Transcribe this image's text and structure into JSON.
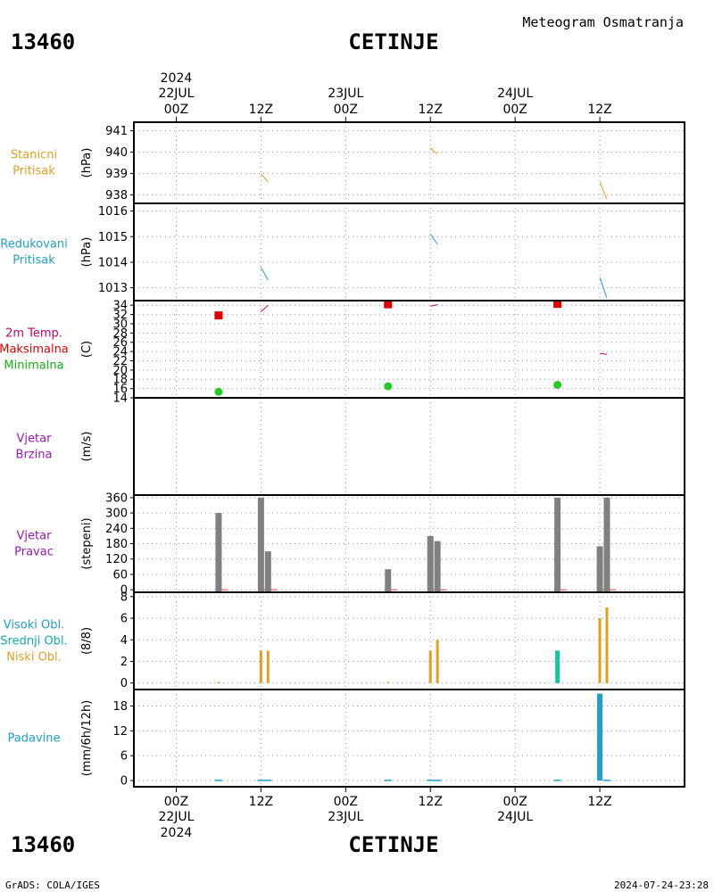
{
  "header": {
    "station_id": "13460",
    "station_name": "CETINJE",
    "product": "Meteogram Osmatranja"
  },
  "footer": {
    "station_id": "13460",
    "station_name": "CETINJE",
    "credit": "GrADS: COLA/IGES",
    "timestamp": "2024-07-24-23:28"
  },
  "time_axis": {
    "top_labels": [
      {
        "hour": 0,
        "l1": "2024",
        "l2": "22JUL",
        "l3": "00Z"
      },
      {
        "hour": 12,
        "l1": "",
        "l2": "",
        "l3": "12Z"
      },
      {
        "hour": 24,
        "l1": "",
        "l2": "23JUL",
        "l3": "00Z"
      },
      {
        "hour": 36,
        "l1": "",
        "l2": "",
        "l3": "12Z"
      },
      {
        "hour": 48,
        "l1": "",
        "l2": "24JUL",
        "l3": "00Z"
      },
      {
        "hour": 60,
        "l1": "",
        "l2": "",
        "l3": "12Z"
      }
    ],
    "bottom_labels": [
      {
        "hour": 0,
        "l1": "00Z",
        "l2": "22JUL",
        "l3": "2024"
      },
      {
        "hour": 12,
        "l1": "12Z",
        "l2": "",
        "l3": ""
      },
      {
        "hour": 24,
        "l1": "00Z",
        "l2": "23JUL",
        "l3": ""
      },
      {
        "hour": 36,
        "l1": "12Z",
        "l2": "",
        "l3": ""
      },
      {
        "hour": 48,
        "l1": "00Z",
        "l2": "24JUL",
        "l3": ""
      },
      {
        "hour": 60,
        "l1": "12Z",
        "l2": "",
        "l3": ""
      }
    ]
  },
  "panels": [
    {
      "key": "pressure",
      "ylabel": "(hPa)",
      "side_labels": [
        {
          "text": "Stanicni",
          "color": "#e0a020"
        },
        {
          "text": "Pritisak",
          "color": "#e0a020"
        }
      ]
    },
    {
      "key": "mslp",
      "ylabel": "(hPa)",
      "side_labels": [
        {
          "text": "Redukovani",
          "color": "#1ea0c8"
        },
        {
          "text": "Pritisak",
          "color": "#1ea0c8"
        }
      ]
    },
    {
      "key": "temp",
      "ylabel": "(C)",
      "side_labels": [
        {
          "text": "2m Temp.",
          "color": "#c0006a"
        },
        {
          "text": "Maksimalna",
          "color": "#e00000"
        },
        {
          "text": "Minimalna",
          "color": "#10b010"
        }
      ]
    },
    {
      "key": "wind_speed",
      "ylabel": "(m/s)",
      "side_labels": [
        {
          "text": "Vjetar",
          "color": "#9a18b0"
        },
        {
          "text": "Brzina",
          "color": "#9a18b0"
        }
      ]
    },
    {
      "key": "wind_dir",
      "ylabel": "(stepeni)",
      "side_labels": [
        {
          "text": "Vjetar",
          "color": "#9a18b0"
        },
        {
          "text": "Pravac",
          "color": "#9a18b0"
        }
      ]
    },
    {
      "key": "clouds",
      "ylabel": "(8/8)",
      "side_labels": [
        {
          "text": "Visoki Obl.",
          "color": "#1ea0c8"
        },
        {
          "text": "Srednji Obl.",
          "color": "#10b0a0"
        },
        {
          "text": "Niski Obl.",
          "color": "#e0a020"
        }
      ]
    },
    {
      "key": "precip",
      "ylabel": "(mm/6h/12h)",
      "side_labels": [
        {
          "text": "Padavine",
          "color": "#1ea0c8"
        }
      ]
    }
  ],
  "colors": {
    "pressure": "#e0a020",
    "mslp": "#1ea0c8",
    "temp": "#c0006a",
    "tmax": "#e00000",
    "tmin": "#22cc22",
    "wind_dir": "#808080",
    "wind_dir_base": "#e04040",
    "cloud_low": "#e0a020",
    "cloud_mid": "#10c8a0",
    "cloud_high": "#1ea0c8",
    "precip": "#1ea0c8"
  },
  "chart_data": [
    {
      "type": "line",
      "title": "Stanicni Pritisak",
      "ylabel": "(hPa)",
      "ylim": [
        937.6,
        941.4
      ],
      "yticks": [
        938,
        939,
        940,
        941
      ],
      "x_unit": "hours since 2024-07-22 00Z",
      "series": [
        {
          "name": "Stanicni Pritisak",
          "segments": [
            [
              [
                12,
                939.0
              ],
              [
                13,
                938.6
              ]
            ],
            [
              [
                36,
                940.2
              ],
              [
                37,
                939.9
              ]
            ],
            [
              [
                60,
                938.6
              ],
              [
                61,
                937.8
              ]
            ]
          ]
        }
      ]
    },
    {
      "type": "line",
      "title": "Redukovani Pritisak",
      "ylabel": "(hPa)",
      "ylim": [
        1012.5,
        1016.3
      ],
      "yticks": [
        1013,
        1014,
        1015,
        1016
      ],
      "x_unit": "hours since 2024-07-22 00Z",
      "series": [
        {
          "name": "Redukovani Pritisak",
          "segments": [
            [
              [
                12,
                1013.8
              ],
              [
                13,
                1013.3
              ]
            ],
            [
              [
                36,
                1015.1
              ],
              [
                37,
                1014.7
              ]
            ],
            [
              [
                60,
                1013.4
              ],
              [
                61,
                1012.6
              ]
            ]
          ]
        }
      ]
    },
    {
      "type": "line",
      "title": "2m Temp. / Maksimalna / Minimalna",
      "ylabel": "(C)",
      "ylim": [
        14,
        35
      ],
      "yticks": [
        14,
        16,
        18,
        20,
        22,
        24,
        26,
        28,
        30,
        32,
        34
      ],
      "x_unit": "hours since 2024-07-22 00Z",
      "series": [
        {
          "name": "2m Temp.",
          "segments": [
            [
              [
                12,
                32.6
              ],
              [
                13,
                34.0
              ]
            ],
            [
              [
                36,
                33.8
              ],
              [
                37,
                34.1
              ]
            ],
            [
              [
                60,
                23.6
              ],
              [
                61,
                23.4
              ]
            ]
          ]
        },
        {
          "name": "Maksimalna",
          "points": [
            [
              6,
              31.8
            ],
            [
              30,
              34.2
            ],
            [
              54,
              34.3
            ]
          ]
        },
        {
          "name": "Minimalna",
          "points": [
            [
              6,
              15.3
            ],
            [
              30,
              16.5
            ],
            [
              54,
              16.8
            ]
          ]
        }
      ]
    },
    {
      "type": "bar",
      "title": "Vjetar Brzina",
      "ylabel": "(m/s)",
      "x_unit": "hours since 2024-07-22 00Z",
      "series": [
        {
          "name": "Brzina",
          "points": []
        }
      ]
    },
    {
      "type": "bar",
      "title": "Vjetar Pravac",
      "ylabel": "(stepeni)",
      "ylim": [
        -10,
        370
      ],
      "yticks": [
        0,
        60,
        120,
        180,
        240,
        300,
        360
      ],
      "x_unit": "hours since 2024-07-22 00Z",
      "series": [
        {
          "name": "Pravac",
          "points": [
            [
              6,
              300
            ],
            [
              12,
              360
            ],
            [
              13,
              150
            ],
            [
              30,
              80
            ],
            [
              36,
              210
            ],
            [
              37,
              190
            ],
            [
              54,
              360
            ],
            [
              60,
              170
            ],
            [
              61,
              360
            ]
          ]
        }
      ]
    },
    {
      "type": "bar",
      "title": "Visoki / Srednji / Niski Obl.",
      "ylabel": "(8/8)",
      "ylim": [
        -0.6,
        8.4
      ],
      "yticks": [
        0,
        2,
        4,
        6,
        8
      ],
      "x_unit": "hours since 2024-07-22 00Z",
      "series": [
        {
          "name": "Niski Obl.",
          "points": [
            [
              6,
              0.1
            ],
            [
              12,
              3
            ],
            [
              13,
              3
            ],
            [
              30,
              0.1
            ],
            [
              36,
              3
            ],
            [
              37,
              4
            ],
            [
              54,
              2
            ],
            [
              60,
              6
            ],
            [
              61,
              7
            ]
          ]
        },
        {
          "name": "Srednji Obl.",
          "points": [
            [
              54,
              3
            ]
          ]
        },
        {
          "name": "Visoki Obl.",
          "points": []
        }
      ]
    },
    {
      "type": "bar",
      "title": "Padavine",
      "ylabel": "(mm/6h/12h)",
      "ylim": [
        -1.5,
        22
      ],
      "yticks": [
        0,
        6,
        12,
        18
      ],
      "x_unit": "hours since 2024-07-22 00Z",
      "series": [
        {
          "name": "Padavine",
          "points": [
            [
              6,
              0.2
            ],
            [
              12,
              0.2
            ],
            [
              13,
              0.2
            ],
            [
              30,
              0.2
            ],
            [
              36,
              0.2
            ],
            [
              37,
              0.2
            ],
            [
              54,
              0.2
            ],
            [
              60,
              21.0
            ],
            [
              61,
              0.2
            ]
          ]
        }
      ]
    }
  ]
}
